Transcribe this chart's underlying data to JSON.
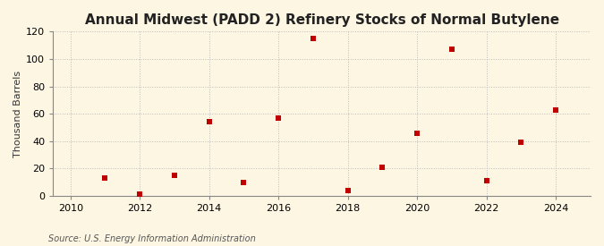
{
  "title": "Annual Midwest (PADD 2) Refinery Stocks of Normal Butylene",
  "ylabel": "Thousand Barrels",
  "source": "Source: U.S. Energy Information Administration",
  "years": [
    2011,
    2012,
    2013,
    2014,
    2015,
    2016,
    2017,
    2018,
    2019,
    2020,
    2021,
    2022,
    2023,
    2024
  ],
  "values": [
    13,
    1,
    15,
    54,
    10,
    57,
    115,
    4,
    21,
    46,
    107,
    11,
    39,
    63
  ],
  "xlim": [
    2009.5,
    2025
  ],
  "ylim": [
    0,
    120
  ],
  "yticks": [
    0,
    20,
    40,
    60,
    80,
    100,
    120
  ],
  "xticks": [
    2010,
    2012,
    2014,
    2016,
    2018,
    2020,
    2022,
    2024
  ],
  "marker_color": "#c00000",
  "marker": "s",
  "marker_size": 4,
  "bg_color": "#fdf6e3",
  "grid_color": "#bbbbbb",
  "title_fontsize": 11,
  "label_fontsize": 8,
  "tick_fontsize": 8,
  "source_fontsize": 7,
  "spine_color": "#888888"
}
